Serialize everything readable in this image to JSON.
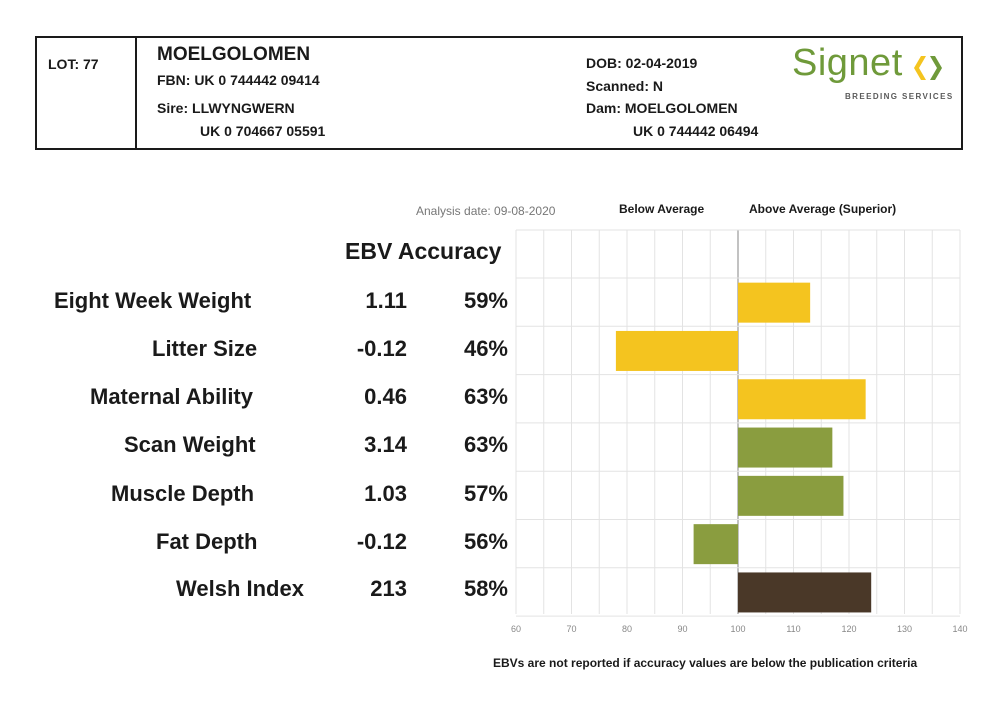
{
  "header": {
    "lot": "LOT: 77",
    "name": "MOELGOLOMEN",
    "fbn": "FBN: UK 0 744442 09414",
    "sire_label": "Sire: LLWYNGWERN",
    "sire_id": "UK 0 704667 05591",
    "dob": "DOB: 02-04-2019",
    "scanned": "Scanned: N",
    "dam_label": "Dam: MOELGOLOMEN",
    "dam_id": "UK 0 744442 06494",
    "logo_word": "Signet",
    "logo_sub": "BREEDING SERVICES"
  },
  "analysis_date": "Analysis date: 09-08-2020",
  "below_average_label": "Below Average",
  "above_average_label": "Above Average (Superior)",
  "column_header": "EBV Accuracy",
  "rows": [
    {
      "label": "Eight Week Weight",
      "ebv": "1.11",
      "accuracy": "59%"
    },
    {
      "label": "Litter Size",
      "ebv": "-0.12",
      "accuracy": "46%"
    },
    {
      "label": "Maternal Ability",
      "ebv": "0.46",
      "accuracy": "63%"
    },
    {
      "label": "Scan Weight",
      "ebv": "3.14",
      "accuracy": "63%"
    },
    {
      "label": "Muscle Depth",
      "ebv": "1.03",
      "accuracy": "57%"
    },
    {
      "label": "Fat Depth",
      "ebv": "-0.12",
      "accuracy": "56%"
    },
    {
      "label": "Welsh Index",
      "ebv": "213",
      "accuracy": "58%"
    }
  ],
  "footnote": "EBVs are not reported if accuracy values are below the publication criteria",
  "chart_data": {
    "type": "bar",
    "orientation": "horizontal",
    "categories": [
      "Eight Week Weight",
      "Litter Size",
      "Maternal Ability",
      "Scan Weight",
      "Muscle Depth",
      "Fat Depth",
      "Welsh Index"
    ],
    "values": [
      113,
      78,
      123,
      117,
      119,
      92,
      124
    ],
    "baseline": 100,
    "xlim": [
      60,
      140
    ],
    "xticks": [
      60,
      70,
      80,
      90,
      100,
      110,
      120,
      130,
      140
    ],
    "grid": true,
    "colors": [
      "#f4c41f",
      "#f4c41f",
      "#f4c41f",
      "#8a9d3f",
      "#8a9d3f",
      "#8a9d3f",
      "#4a3828"
    ]
  }
}
